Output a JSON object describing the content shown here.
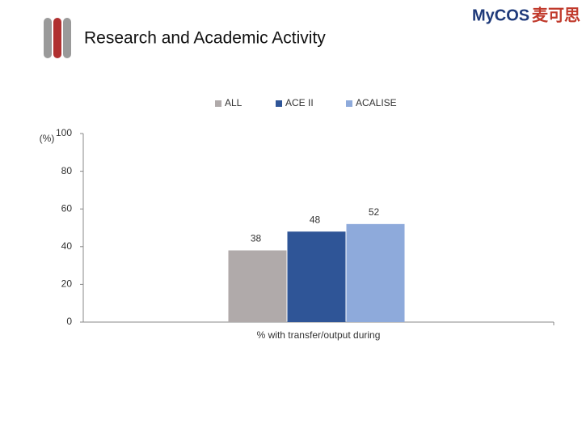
{
  "logo": {
    "brand": "MyCOS",
    "name": "麦可思"
  },
  "chart_data": {
    "type": "bar",
    "title": "Research and Academic Activity",
    "y_label": "(%)",
    "categories": [
      "% with transfer/output during"
    ],
    "series": [
      {
        "name": "ALL",
        "color": "#b0aaaa",
        "values": [
          38
        ]
      },
      {
        "name": "ACE II",
        "color": "#2f5597",
        "values": [
          48
        ]
      },
      {
        "name": "ACALISE",
        "color": "#8eaadb",
        "values": [
          52
        ]
      }
    ],
    "ylim": [
      0,
      100
    ],
    "yticks": [
      0,
      20,
      40,
      60,
      80,
      100
    ],
    "grid": false,
    "legend": "top"
  }
}
